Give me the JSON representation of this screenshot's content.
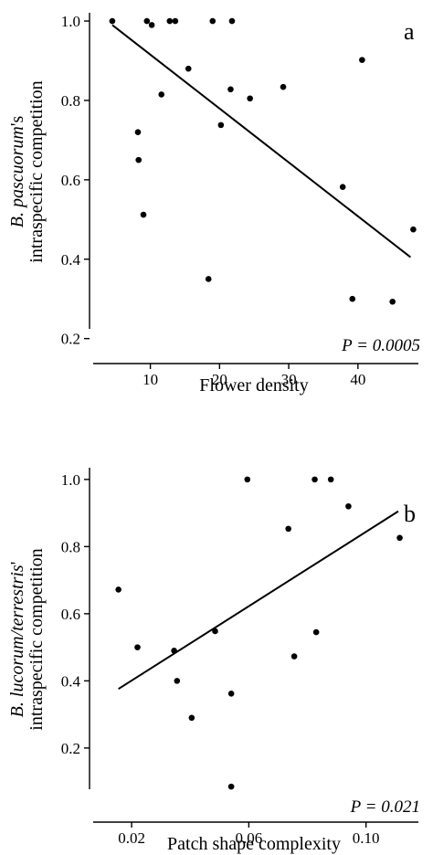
{
  "chart_data": [
    {
      "type": "scatter",
      "panel_letter": "a",
      "xlabel": "Flower density",
      "ylabel_line1_prefix": "B. pascuorum",
      "ylabel_line1_suffix": "'s",
      "ylabel_line2": "intraspecific competition",
      "p_value_label": "P = 0.0005",
      "xlim": [
        2,
        49
      ],
      "ylim": [
        0.19,
        1.03
      ],
      "xticks": [
        10,
        20,
        30,
        40
      ],
      "xtick_labels": [
        "10",
        "20",
        "30",
        "40"
      ],
      "yticks": [
        0.2,
        0.4,
        0.6,
        0.8,
        1.0
      ],
      "ytick_labels": [
        "0.2",
        "0.4",
        "0.6",
        "0.8",
        "1.0"
      ],
      "points": [
        {
          "x": 4.5,
          "y": 1.0
        },
        {
          "x": 9.5,
          "y": 1.0
        },
        {
          "x": 10.2,
          "y": 0.99
        },
        {
          "x": 12.8,
          "y": 1.0
        },
        {
          "x": 13.6,
          "y": 1.0
        },
        {
          "x": 19.0,
          "y": 1.0
        },
        {
          "x": 21.8,
          "y": 1.0
        },
        {
          "x": 15.5,
          "y": 0.88
        },
        {
          "x": 11.6,
          "y": 0.815
        },
        {
          "x": 21.6,
          "y": 0.828
        },
        {
          "x": 24.4,
          "y": 0.805
        },
        {
          "x": 29.2,
          "y": 0.834
        },
        {
          "x": 20.2,
          "y": 0.738
        },
        {
          "x": 8.2,
          "y": 0.72
        },
        {
          "x": 8.3,
          "y": 0.65
        },
        {
          "x": 9.0,
          "y": 0.512
        },
        {
          "x": 18.4,
          "y": 0.35
        },
        {
          "x": 37.8,
          "y": 0.582
        },
        {
          "x": 40.6,
          "y": 0.902
        },
        {
          "x": 39.2,
          "y": 0.3
        },
        {
          "x": 45.0,
          "y": 0.293
        },
        {
          "x": 48.0,
          "y": 0.475
        }
      ],
      "regression": {
        "x": [
          4.5,
          47.6
        ],
        "y": [
          0.99,
          0.405
        ]
      }
    },
    {
      "type": "scatter",
      "panel_letter": "b",
      "xlabel": "Patch shape complexity",
      "ylabel_line1_prefix": "B. lucorum/terrestris",
      "ylabel_line1_suffix": "'",
      "ylabel_line2": "intraspecific competition",
      "p_value_label": "P = 0.021",
      "xlim": [
        0.0075,
        0.1185
      ],
      "ylim": [
        0.05,
        1.035
      ],
      "xticks": [
        0.02,
        0.06,
        0.1
      ],
      "xtick_labels": [
        "0.02",
        "0.06",
        "0.10"
      ],
      "yticks": [
        0.2,
        0.4,
        0.6,
        0.8,
        1.0
      ],
      "ytick_labels": [
        "0.2",
        "0.4",
        "0.6",
        "0.8",
        "1.0"
      ],
      "points": [
        {
          "x": 0.0155,
          "y": 0.672
        },
        {
          "x": 0.022,
          "y": 0.5
        },
        {
          "x": 0.0345,
          "y": 0.49
        },
        {
          "x": 0.0355,
          "y": 0.4
        },
        {
          "x": 0.0405,
          "y": 0.29
        },
        {
          "x": 0.0485,
          "y": 0.548
        },
        {
          "x": 0.054,
          "y": 0.362
        },
        {
          "x": 0.054,
          "y": 0.085
        },
        {
          "x": 0.0595,
          "y": 1.0
        },
        {
          "x": 0.0735,
          "y": 0.853
        },
        {
          "x": 0.0755,
          "y": 0.473
        },
        {
          "x": 0.0825,
          "y": 1.0
        },
        {
          "x": 0.083,
          "y": 0.545
        },
        {
          "x": 0.088,
          "y": 1.0
        },
        {
          "x": 0.094,
          "y": 0.92
        },
        {
          "x": 0.1115,
          "y": 0.826
        }
      ],
      "regression": {
        "x": [
          0.0155,
          0.111
        ],
        "y": [
          0.376,
          0.905
        ]
      }
    }
  ]
}
